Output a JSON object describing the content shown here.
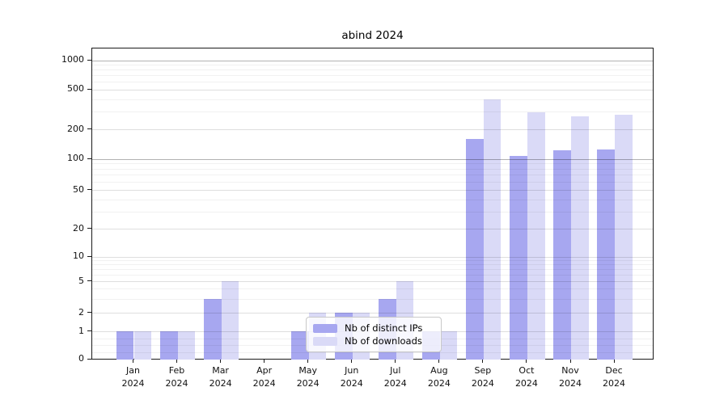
{
  "chart_data": {
    "type": "bar",
    "title": "abind 2024",
    "categories": [
      "Jan",
      "Feb",
      "Mar",
      "Apr",
      "May",
      "Jun",
      "Jul",
      "Aug",
      "Sep",
      "Oct",
      "Nov",
      "Dec"
    ],
    "x_year_label": "2024",
    "series": [
      {
        "name": "Nb of distinct IPs",
        "color": "#a7a7f0",
        "values": [
          1,
          1,
          3,
          0,
          1,
          2,
          3,
          1,
          160,
          106,
          122,
          124
        ]
      },
      {
        "name": "Nb of downloads",
        "color": "#dadaf7",
        "values": [
          1,
          1,
          5,
          0,
          2,
          2,
          5,
          1,
          395,
          295,
          269,
          279
        ]
      }
    ],
    "y_ticks": [
      0,
      1,
      2,
      5,
      10,
      20,
      50,
      100,
      200,
      500,
      1000
    ],
    "y_scale": "log above 1, linear 0-1",
    "ylim": [
      0,
      1285
    ],
    "grid": true,
    "legend_position": "inside bottom-center",
    "colors": {
      "grid_major": "#b3b3b3",
      "grid_labeled": "#dedede",
      "grid_minor": "#f0f0f0",
      "axis": "#1a1a1a",
      "background": "#ffffff"
    }
  }
}
